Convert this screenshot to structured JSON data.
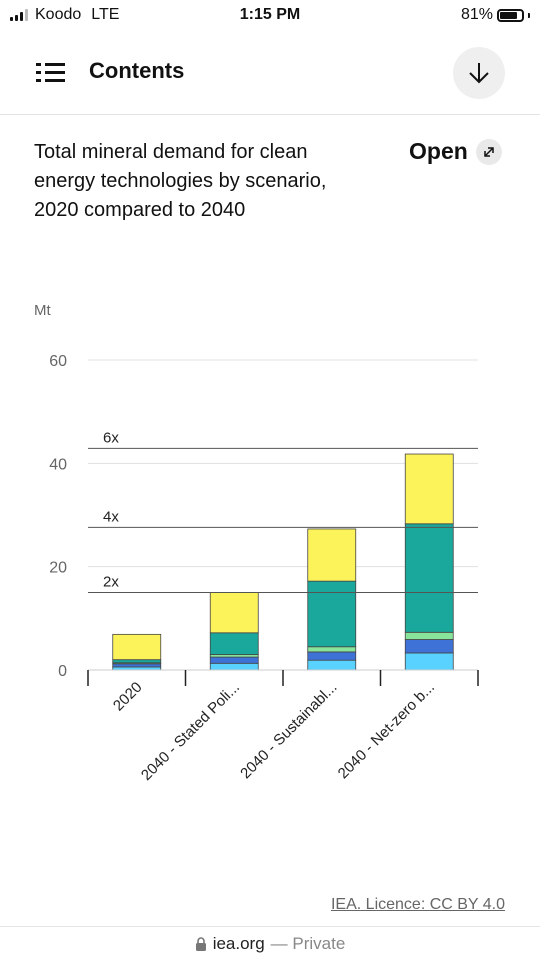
{
  "status_bar": {
    "carrier": "Koodo",
    "network": "LTE",
    "time": "1:15 PM",
    "battery": "81%",
    "battery_level": 0.81
  },
  "header": {
    "title": "Contents"
  },
  "chart_header": {
    "title": "Total mineral demand for clean energy technologies by scenario, 2020 compared to 2040",
    "open_label": "Open"
  },
  "footer": {
    "licence": "IEA. Licence: CC BY 4.0"
  },
  "browser": {
    "domain": "iea.org",
    "private": "— Private"
  },
  "chart_data": {
    "type": "bar",
    "stacked": true,
    "unit_label": "Mt",
    "ylim": [
      0,
      60
    ],
    "yticks": [
      0,
      20,
      40,
      60
    ],
    "gridlines": true,
    "categories": [
      "2020",
      "2040 - Stated Poli...",
      "2040 - Sustainabl...",
      "2040 - Net-zero b..."
    ],
    "series": [
      {
        "color": "#5ad2ff",
        "values": [
          0.6,
          1.3,
          1.9,
          3.3
        ]
      },
      {
        "color": "#3f72d6",
        "values": [
          0.6,
          1.2,
          1.6,
          2.6
        ]
      },
      {
        "color": "#88e49a",
        "values": [
          0.2,
          0.5,
          1.0,
          1.4
        ]
      },
      {
        "color": "#1aa89c",
        "values": [
          0.6,
          4.2,
          12.7,
          21.0
        ]
      },
      {
        "color": "#fcf35a",
        "values": [
          4.9,
          7.8,
          10.1,
          13.5
        ]
      }
    ],
    "reference_lines": [
      {
        "label": "2x",
        "value": 15
      },
      {
        "label": "4x",
        "value": 27.6
      },
      {
        "label": "6x",
        "value": 42.9
      }
    ]
  }
}
